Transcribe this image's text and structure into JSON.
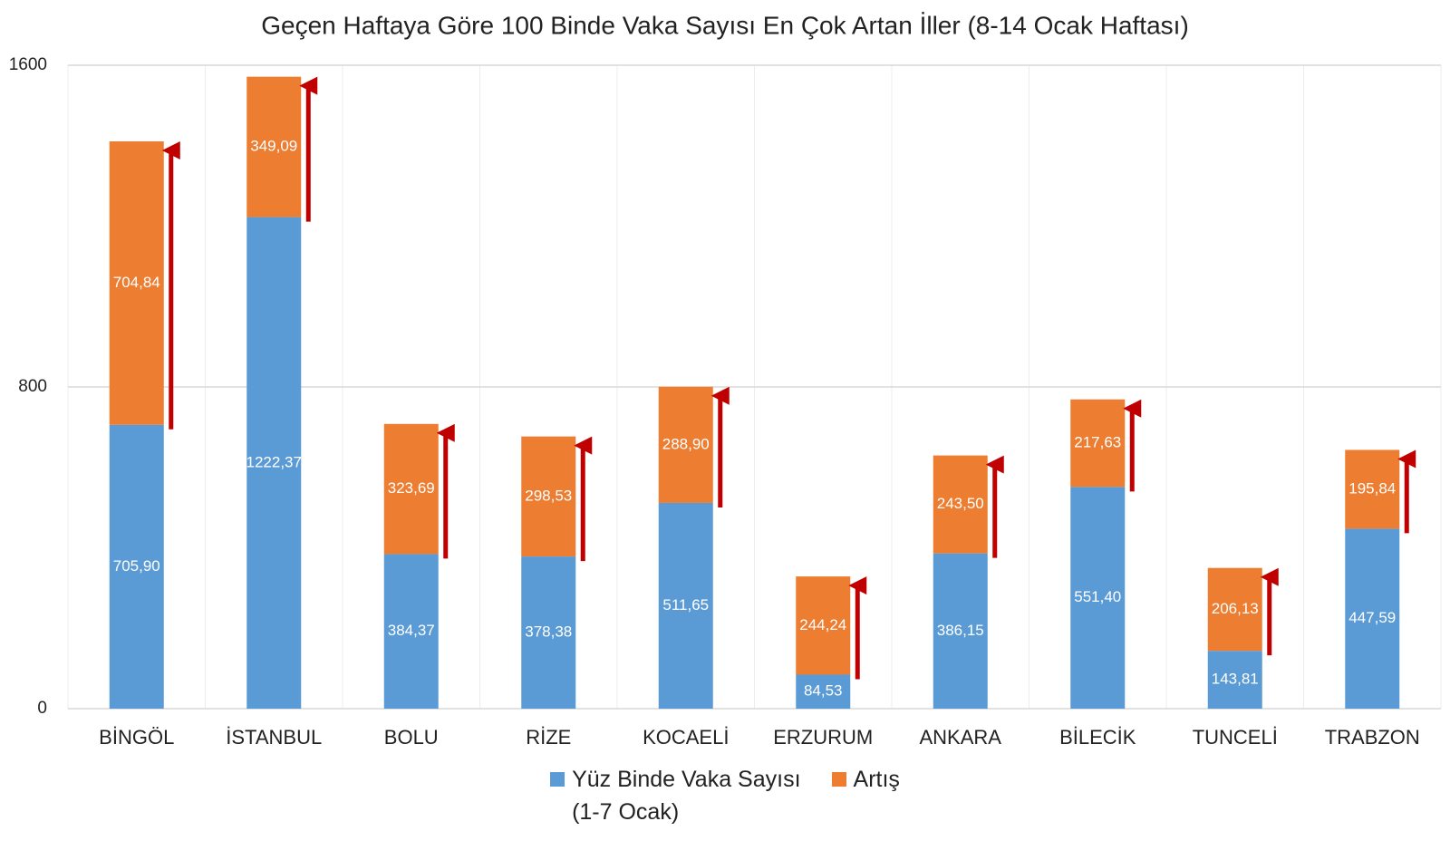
{
  "chart_data": {
    "type": "stacked_bar",
    "title": "Geçen Haftaya Göre 100 Binde Vaka Sayısı En Çok Artan İller (8-14 Ocak Haftası)",
    "categories": [
      "BİNGÖL",
      "İSTANBUL",
      "BOLU",
      "RİZE",
      "KOCAELİ",
      "ERZURUM",
      "ANKARA",
      "BİLECİK",
      "TUNCELİ",
      "TRABZON"
    ],
    "series": [
      {
        "name": "Yüz Binde Vaka Sayısı\n(1-7 Ocak)",
        "color": "#5b9bd5",
        "values": [
          705.9,
          1222.37,
          384.37,
          378.38,
          511.65,
          84.53,
          386.15,
          551.4,
          143.81,
          447.59
        ],
        "value_labels": [
          "705,90",
          "1222,37",
          "384,37",
          "378,38",
          "511,65",
          "84,53",
          "386,15",
          "551,40",
          "143,81",
          "447,59"
        ]
      },
      {
        "name": "Artış",
        "color": "#ed7d31",
        "values": [
          704.84,
          349.09,
          323.69,
          298.53,
          288.9,
          244.24,
          243.5,
          217.63,
          206.13,
          195.84
        ],
        "value_labels": [
          "704,84",
          "349,09",
          "323,69",
          "298,53",
          "288,90",
          "244,24",
          "243,50",
          "217,63",
          "206,13",
          "195,84"
        ]
      }
    ],
    "ylim": [
      0,
      1600
    ],
    "yticks": [
      0,
      800,
      1600
    ],
    "grid": true,
    "arrow_color": "#c00000"
  }
}
